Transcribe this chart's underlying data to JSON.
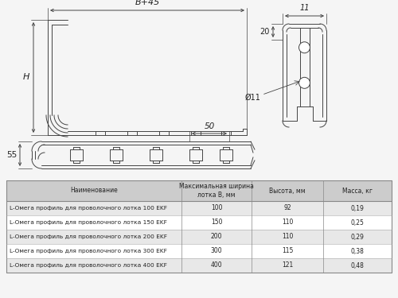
{
  "bg_color": "#f5f5f5",
  "line_color": "#444444",
  "table_header_bg": "#cccccc",
  "table_row_bg1": "#e8e8e8",
  "table_row_bg2": "#ffffff",
  "table_header": [
    "Наименование",
    "Максимальная ширина\nлотка В, мм",
    "Высота, мм",
    "Масса, кг"
  ],
  "table_rows": [
    [
      "L-Омега профиль для проволочного лотка 100 EKF",
      "100",
      "92",
      "0,19"
    ],
    [
      "L-Омега профиль для проволочного лотка 150 EKF",
      "150",
      "110",
      "0,25"
    ],
    [
      "L-Омега профиль для проволочного лотка 200 EKF",
      "200",
      "110",
      "0,29"
    ],
    [
      "L-Омега профиль для проволочного лотка 300 EKF",
      "300",
      "115",
      "0,38"
    ],
    [
      "L-Омега профиль для проволочного лотка 400 EKF",
      "400",
      "121",
      "0,48"
    ]
  ],
  "dim_B45": "В+45",
  "dim_H": "H",
  "dim_50": "50",
  "dim_55": "55",
  "dim_11": "11",
  "dim_20": "20",
  "dim_D11": "Ø11"
}
